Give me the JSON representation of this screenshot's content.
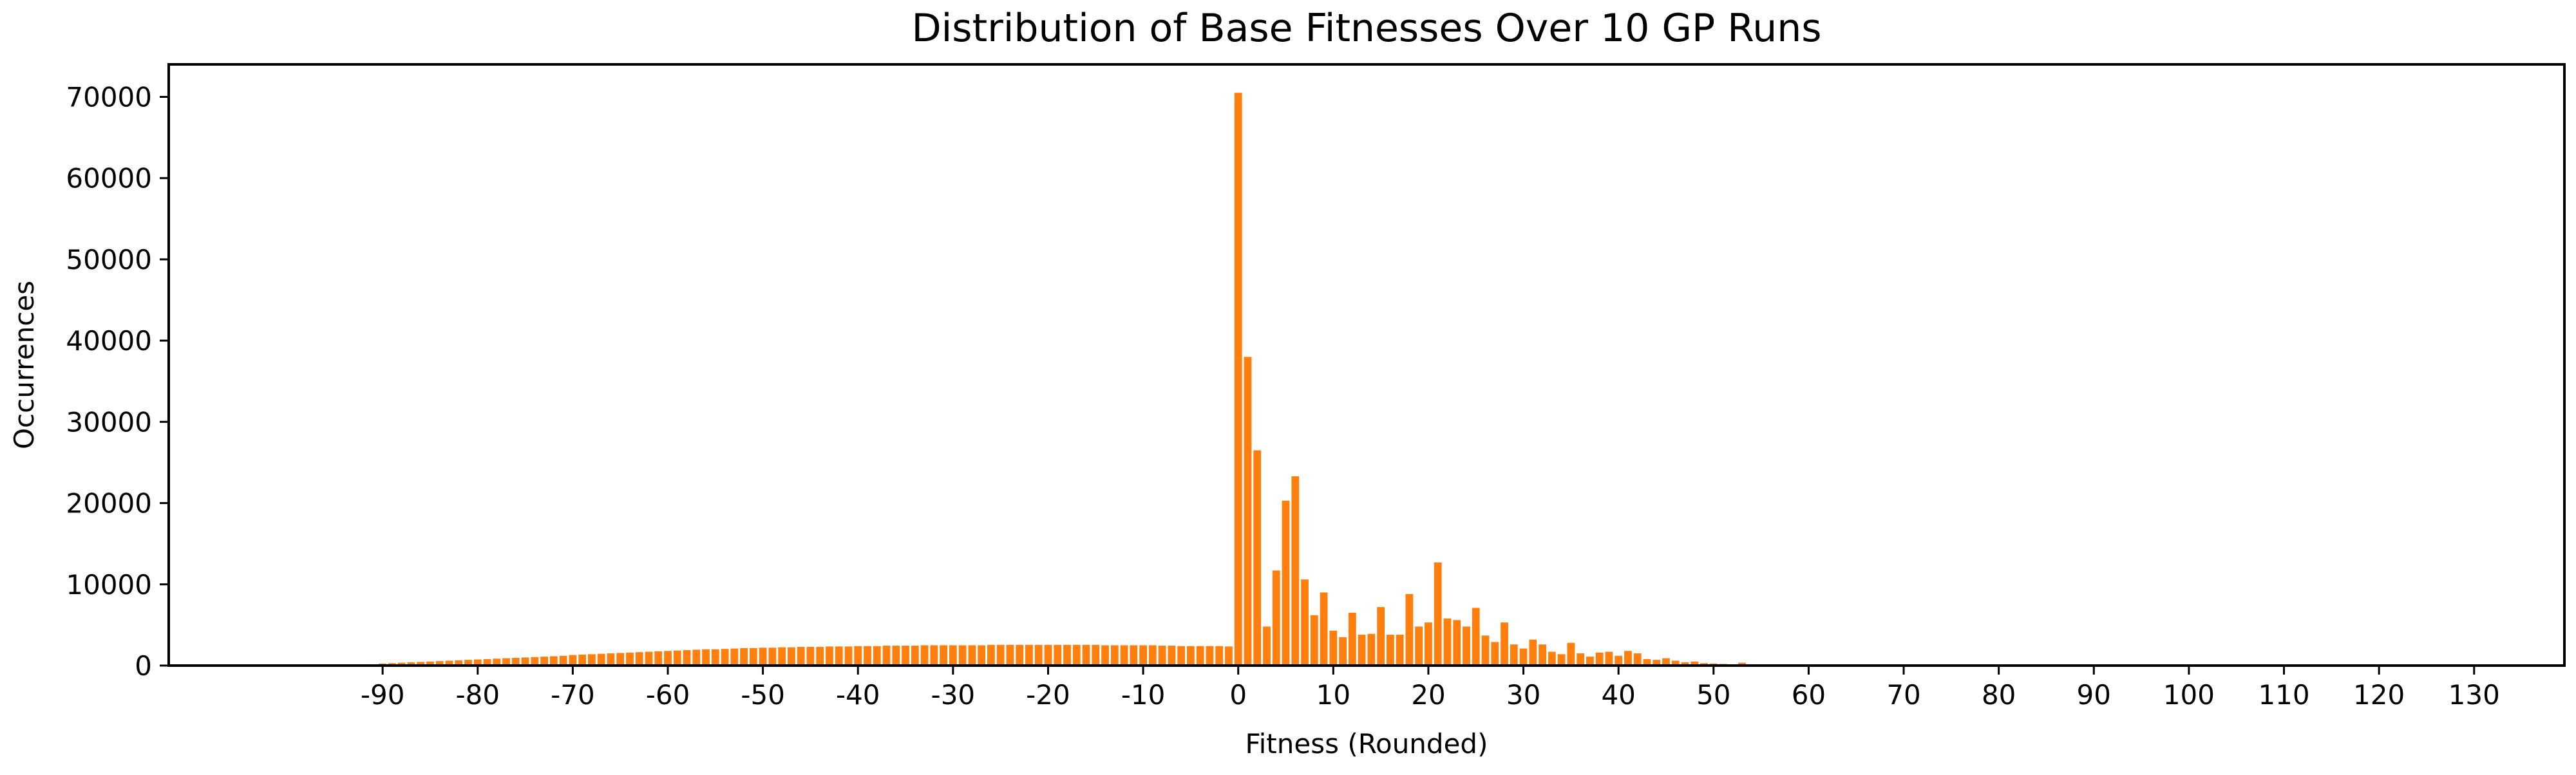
{
  "chart_data": {
    "type": "bar",
    "title": "Distribution of Base Fitnesses Over 10 GP Runs",
    "xlabel": "Fitness (Rounded)",
    "ylabel": "Occurrences",
    "bar_color": "#ff7f0e",
    "xlim": [
      -112.5,
      139.5
    ],
    "ylim": [
      0,
      74000
    ],
    "xticks": [
      -90,
      -80,
      -70,
      -60,
      -50,
      -40,
      -30,
      -20,
      -10,
      0,
      10,
      20,
      30,
      40,
      50,
      60,
      70,
      80,
      90,
      100,
      110,
      120,
      130
    ],
    "yticks": [
      0,
      10000,
      20000,
      30000,
      40000,
      50000,
      60000,
      70000
    ],
    "x": [
      -91,
      -90,
      -89,
      -88,
      -87,
      -86,
      -85,
      -84,
      -83,
      -82,
      -81,
      -80,
      -79,
      -78,
      -77,
      -76,
      -75,
      -74,
      -73,
      -72,
      -71,
      -70,
      -69,
      -68,
      -67,
      -66,
      -65,
      -64,
      -63,
      -62,
      -61,
      -60,
      -59,
      -58,
      -57,
      -56,
      -55,
      -54,
      -53,
      -52,
      -51,
      -50,
      -49,
      -48,
      -47,
      -46,
      -45,
      -44,
      -43,
      -42,
      -41,
      -40,
      -39,
      -38,
      -37,
      -36,
      -35,
      -34,
      -33,
      -32,
      -31,
      -30,
      -29,
      -28,
      -27,
      -26,
      -25,
      -24,
      -23,
      -22,
      -21,
      -20,
      -19,
      -18,
      -17,
      -16,
      -15,
      -14,
      -13,
      -12,
      -11,
      -10,
      -9,
      -8,
      -7,
      -6,
      -5,
      -4,
      -3,
      -2,
      -1,
      0,
      1,
      2,
      3,
      4,
      5,
      6,
      7,
      8,
      9,
      10,
      11,
      12,
      13,
      14,
      15,
      16,
      17,
      18,
      19,
      20,
      21,
      22,
      23,
      24,
      25,
      26,
      27,
      28,
      29,
      30,
      31,
      32,
      33,
      34,
      35,
      36,
      37,
      38,
      39,
      40,
      41,
      42,
      43,
      44,
      45,
      46,
      47,
      48,
      49,
      50,
      51,
      52,
      53,
      54,
      55,
      56,
      57,
      58,
      59,
      60,
      61
    ],
    "values": [
      150,
      250,
      300,
      350,
      400,
      450,
      500,
      550,
      600,
      650,
      700,
      750,
      800,
      850,
      900,
      950,
      1000,
      1050,
      1100,
      1150,
      1200,
      1300,
      1350,
      1400,
      1450,
      1500,
      1550,
      1600,
      1650,
      1700,
      1750,
      1800,
      1850,
      1900,
      1950,
      2000,
      2000,
      2050,
      2100,
      2150,
      2150,
      2200,
      2200,
      2250,
      2250,
      2300,
      2300,
      2300,
      2350,
      2350,
      2350,
      2400,
      2400,
      2400,
      2450,
      2450,
      2450,
      2450,
      2500,
      2500,
      2500,
      2500,
      2500,
      2500,
      2500,
      2550,
      2550,
      2550,
      2550,
      2550,
      2550,
      2550,
      2550,
      2550,
      2550,
      2550,
      2550,
      2500,
      2500,
      2500,
      2500,
      2500,
      2500,
      2450,
      2450,
      2400,
      2400,
      2400,
      2400,
      2400,
      2350,
      70500,
      38000,
      26500,
      4800,
      11700,
      20300,
      23300,
      10600,
      6200,
      9000,
      4300,
      3500,
      6500,
      3800,
      3900,
      7200,
      3800,
      3800,
      8800,
      4800,
      5300,
      12700,
      5800,
      5600,
      4800,
      7100,
      3700,
      2900,
      5300,
      2600,
      2100,
      3200,
      2600,
      1700,
      1400,
      2800,
      1500,
      1100,
      1600,
      1700,
      1200,
      1800,
      1500,
      800,
      700,
      900,
      600,
      400,
      500,
      300,
      250,
      200,
      150,
      350,
      150,
      100,
      100,
      80,
      50,
      30,
      150,
      40
    ]
  }
}
